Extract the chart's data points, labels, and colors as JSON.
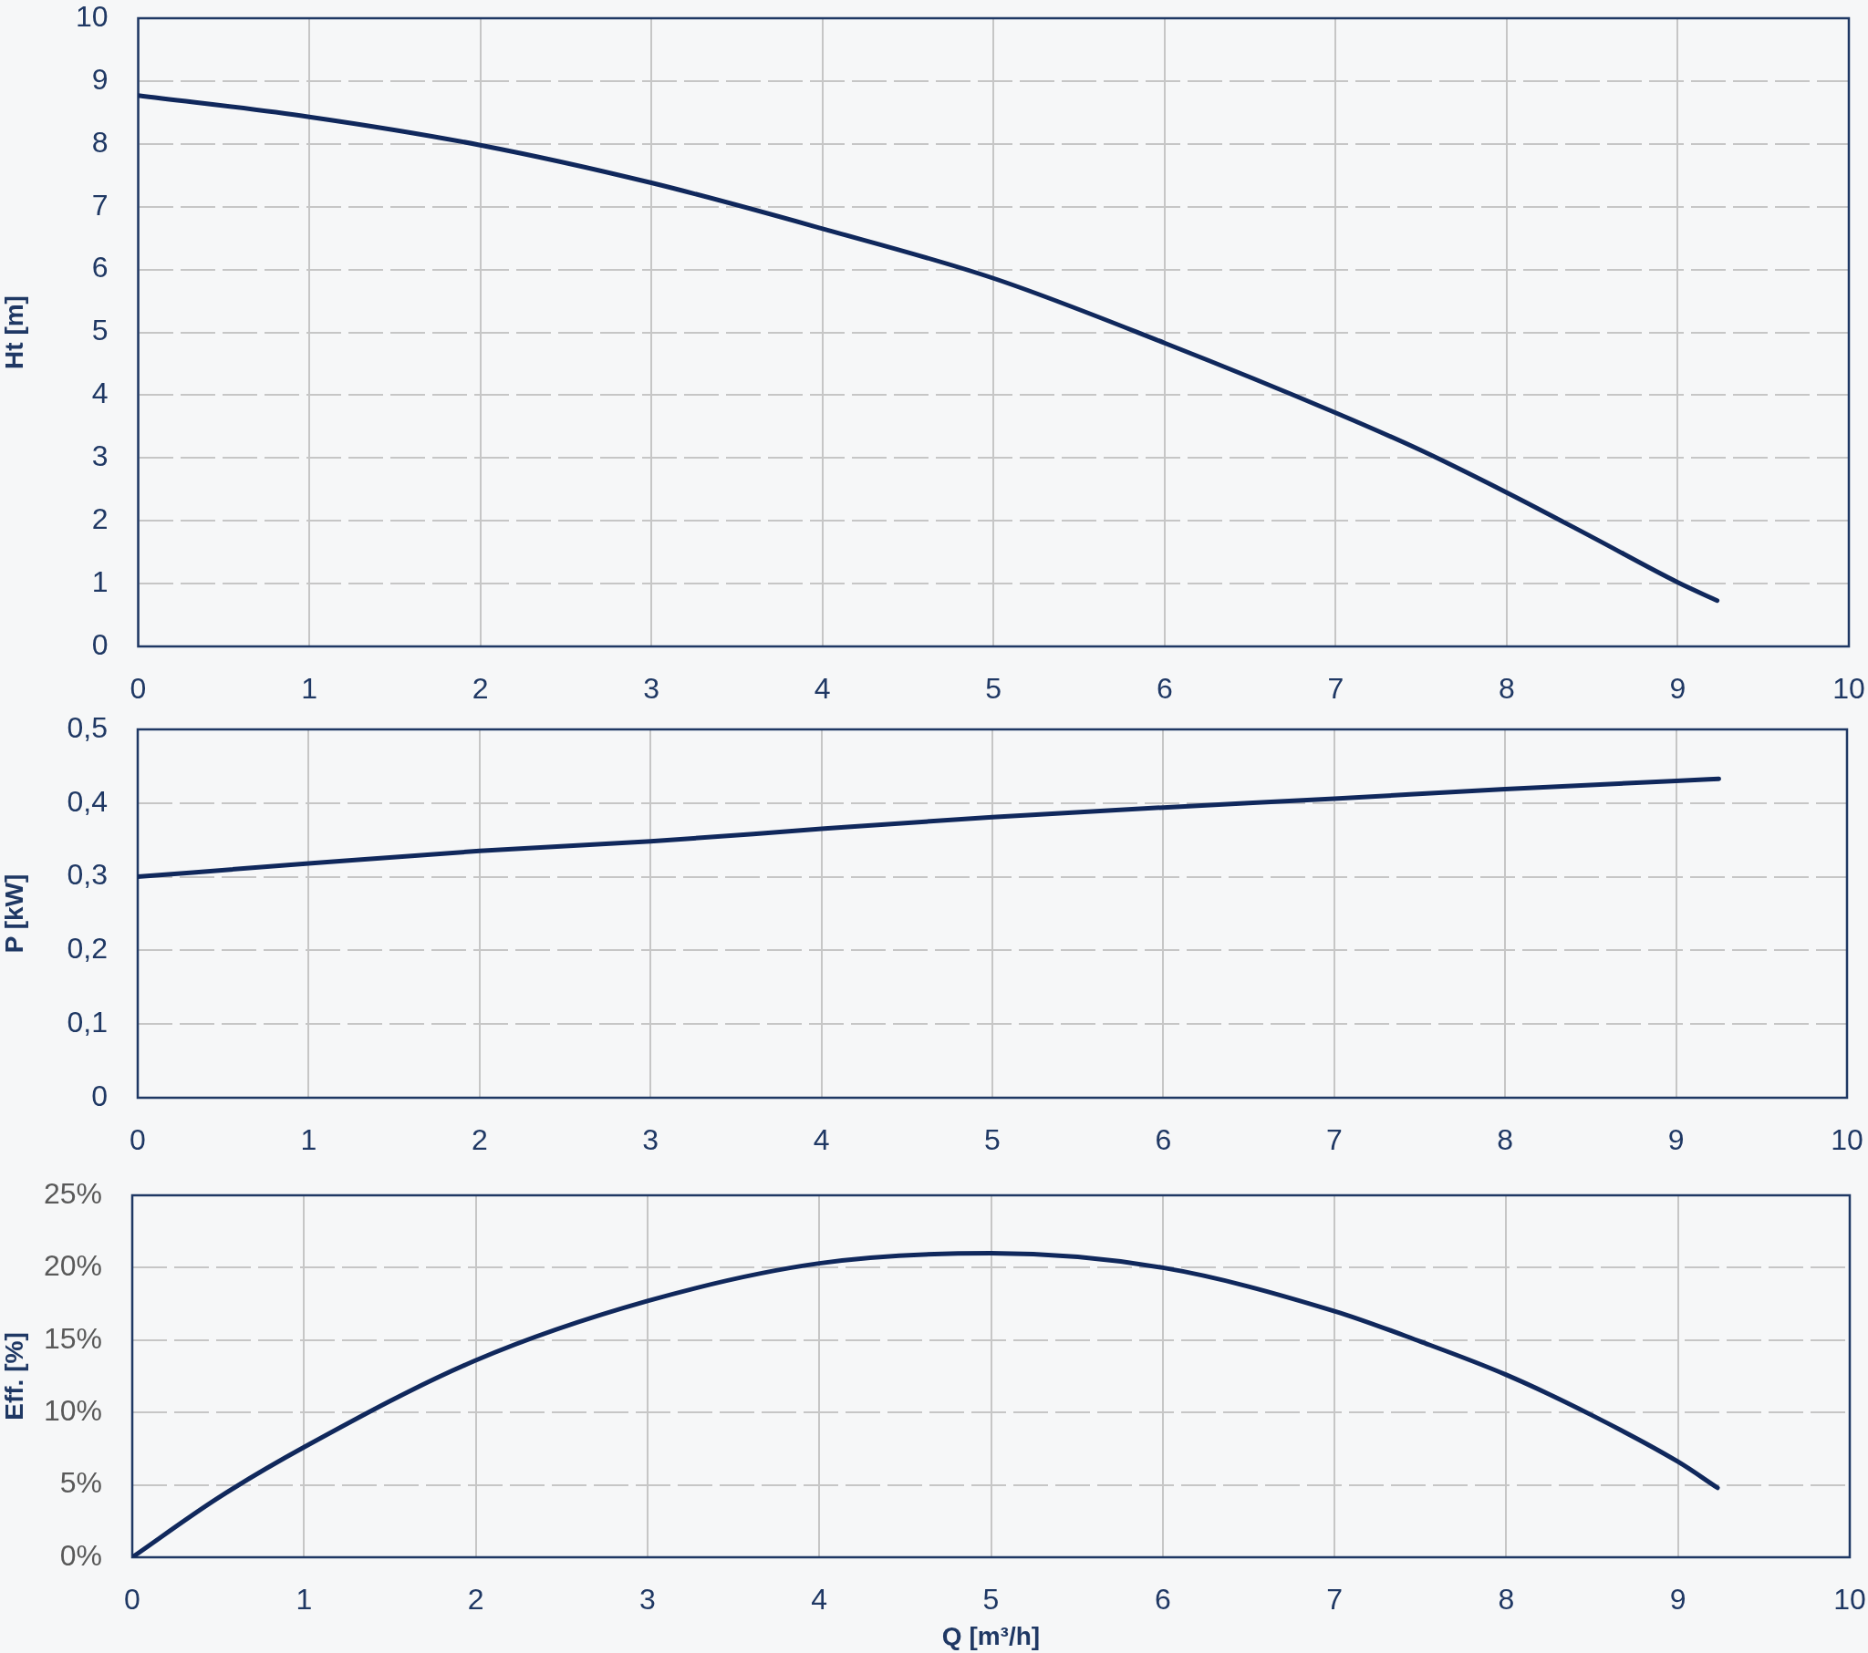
{
  "chart_data": [
    {
      "type": "line",
      "ylabel": "Ht [m]",
      "x": [
        0,
        1,
        2,
        3,
        4,
        5,
        6,
        7,
        7.5,
        8,
        8.5,
        9,
        9.23
      ],
      "values": [
        8.77,
        8.43,
        7.98,
        7.38,
        6.65,
        5.86,
        4.83,
        3.72,
        3.12,
        2.45,
        1.74,
        1.02,
        0.73
      ],
      "color": "#10285c",
      "xlim": [
        0,
        10
      ],
      "xticks": [
        0,
        1,
        2,
        3,
        4,
        5,
        6,
        7,
        8,
        9,
        10
      ],
      "ylim": [
        0,
        10
      ],
      "yticks": [
        0,
        1,
        2,
        3,
        4,
        5,
        6,
        7,
        8,
        9,
        10
      ],
      "grid": true
    },
    {
      "type": "line",
      "ylabel": "P [kW]",
      "x": [
        0,
        1,
        2,
        3,
        4,
        5,
        6,
        7,
        8,
        9,
        9.25
      ],
      "values": [
        0.3,
        0.318,
        0.335,
        0.348,
        0.365,
        0.381,
        0.394,
        0.406,
        0.419,
        0.43,
        0.433
      ],
      "color": "#10285c",
      "xlim": [
        0,
        10
      ],
      "xticks": [
        0,
        1,
        2,
        3,
        4,
        5,
        6,
        7,
        8,
        9,
        10
      ],
      "ylim": [
        0,
        0.5
      ],
      "yticks": [
        0,
        {
          "value": 0.1,
          "label": "0,1"
        },
        {
          "value": 0.2,
          "label": "0,2"
        },
        {
          "value": 0.3,
          "label": "0,3"
        },
        {
          "value": 0.4,
          "label": "0,4"
        },
        {
          "value": 0.5,
          "label": "0,5"
        }
      ],
      "grid": true
    },
    {
      "type": "line",
      "xlabel": "Q [m³/h]",
      "ylabel": "Eff. [%]",
      "x": [
        0,
        0.5,
        1,
        2,
        3,
        4,
        5,
        6,
        7,
        7.5,
        8,
        8.5,
        9,
        9.23
      ],
      "values": [
        0,
        4.1,
        7.6,
        13.6,
        17.7,
        20.3,
        21.0,
        20.0,
        17.0,
        14.9,
        12.6,
        9.8,
        6.6,
        4.8
      ],
      "color": "#10285c",
      "xlim": [
        0,
        10
      ],
      "xticks": [
        0,
        1,
        2,
        3,
        4,
        5,
        6,
        7,
        8,
        9,
        10
      ],
      "ylim": [
        0,
        25
      ],
      "yticks": [
        {
          "value": 0,
          "label": "0%"
        },
        {
          "value": 5,
          "label": "5%"
        },
        {
          "value": 10,
          "label": "10%"
        },
        {
          "value": 15,
          "label": "15%"
        },
        {
          "value": 20,
          "label": "20%"
        },
        {
          "value": 25,
          "label": "25%"
        }
      ],
      "grid": true
    }
  ]
}
